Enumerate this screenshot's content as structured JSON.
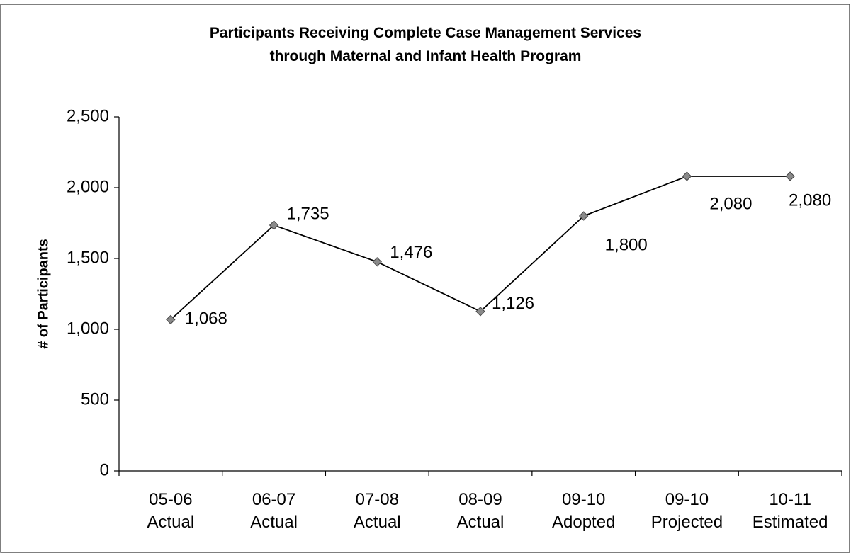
{
  "chart_data": {
    "type": "line",
    "title": "Participants Receiving Complete Case Management Services\nthrough Maternal and Infant Health Program",
    "y_label": "# of Participants",
    "categories": [
      "05-06\nActual",
      "06-07\nActual",
      "07-08\nActual",
      "08-09\nActual",
      "09-10\nAdopted",
      "09-10\nProjected",
      "10-11\nEstimated"
    ],
    "series": [
      {
        "name": "Participants",
        "color": "#000000",
        "marker_color": "#8a8a8a",
        "values": [
          1068,
          1735,
          1476,
          1126,
          1800,
          2080,
          2080
        ],
        "value_labels": [
          "1,068",
          "1,735",
          "1,476",
          "1,126",
          "1,800",
          "2,080",
          "2,080"
        ]
      }
    ],
    "ylim": [
      0,
      2500
    ],
    "yticks": [
      0,
      500,
      {
        "value": 1000,
        "label": "1,000"
      },
      {
        "value": 1500,
        "label": "1,500"
      },
      {
        "value": 2000,
        "label": "2,000"
      },
      {
        "value": 2500,
        "label": "2,500"
      }
    ],
    "grid": false
  }
}
